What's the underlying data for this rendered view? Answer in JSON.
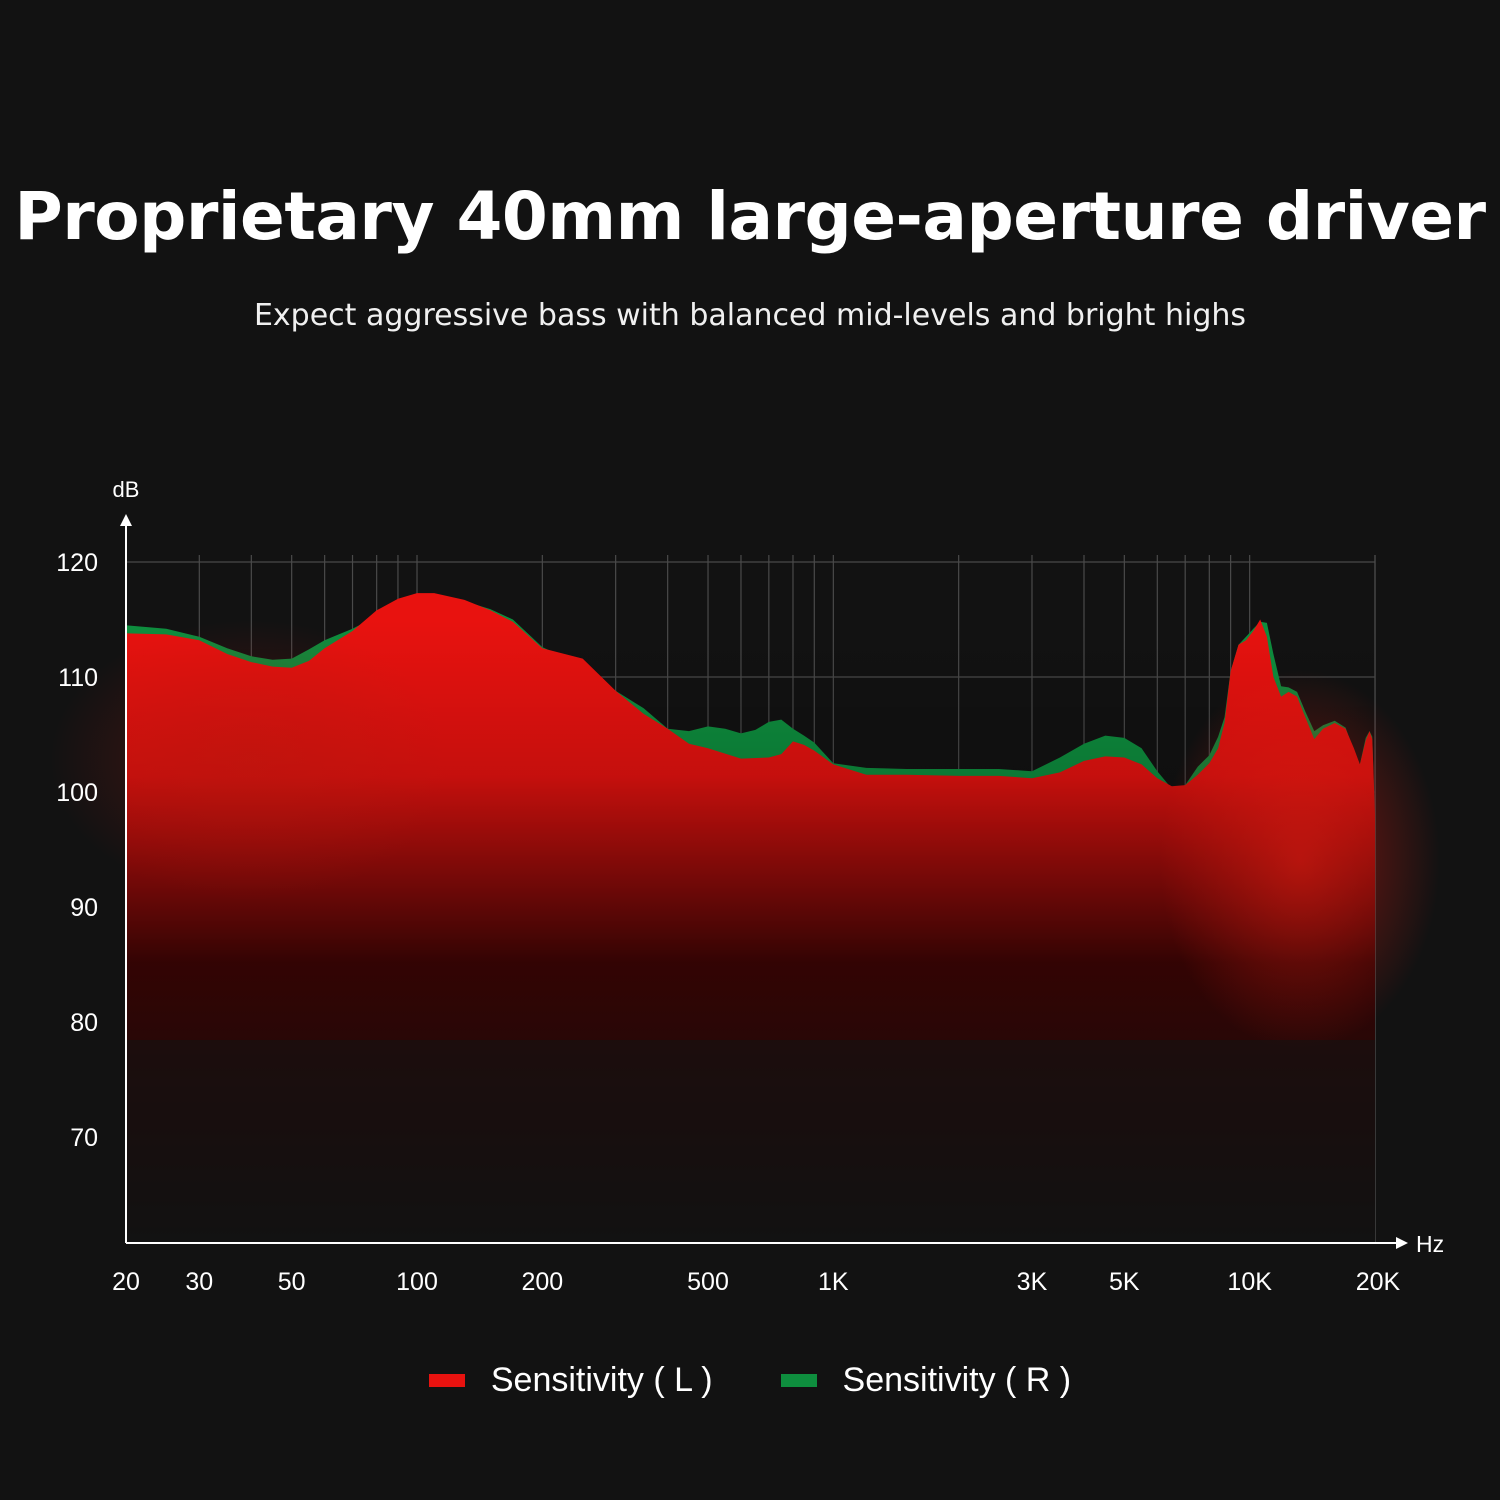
{
  "header": {
    "title": "Proprietary 40mm large-aperture driver",
    "subtitle": "Expect aggressive bass with balanced mid-levels and bright highs"
  },
  "chart_data": {
    "type": "area",
    "xscale": "log",
    "xlim": [
      20,
      20000
    ],
    "ylim": [
      61,
      121
    ],
    "ylabel": "dB",
    "xlabel": "Hz",
    "yticks": [
      {
        "value": 120,
        "label": "120"
      },
      {
        "value": 110,
        "label": "110"
      },
      {
        "value": 100,
        "label": "100"
      },
      {
        "value": 90,
        "label": "90"
      },
      {
        "value": 80,
        "label": "80"
      },
      {
        "value": 70,
        "label": "70"
      }
    ],
    "xticks": [
      {
        "value": 20,
        "label": "20"
      },
      {
        "value": 30,
        "label": "30"
      },
      {
        "value": 50,
        "label": "50"
      },
      {
        "value": 100,
        "label": "100"
      },
      {
        "value": 200,
        "label": "200"
      },
      {
        "value": 500,
        "label": "500"
      },
      {
        "value": 1000,
        "label": "1K"
      },
      {
        "value": 3000,
        "label": "3K"
      },
      {
        "value": 5000,
        "label": "5K"
      },
      {
        "value": 10000,
        "label": "10K"
      },
      {
        "value": 20000,
        "label": "20K"
      }
    ],
    "grid": true,
    "legend_position": "bottom-center",
    "series": [
      {
        "name": "Sensitivity ( L )",
        "color": "#e8120f",
        "points": [
          [
            20,
            113.8
          ],
          [
            25,
            113.7
          ],
          [
            30,
            113.2
          ],
          [
            35,
            112.0
          ],
          [
            40,
            111.3
          ],
          [
            45,
            110.9
          ],
          [
            50,
            110.8
          ],
          [
            55,
            111.4
          ],
          [
            60,
            112.5
          ],
          [
            70,
            114.0
          ],
          [
            80,
            115.8
          ],
          [
            90,
            116.8
          ],
          [
            100,
            117.3
          ],
          [
            110,
            117.3
          ],
          [
            130,
            116.7
          ],
          [
            150,
            115.8
          ],
          [
            170,
            114.8
          ],
          [
            200,
            112.5
          ],
          [
            250,
            111.6
          ],
          [
            300,
            108.8
          ],
          [
            350,
            106.8
          ],
          [
            400,
            105.5
          ],
          [
            450,
            104.2
          ],
          [
            500,
            103.8
          ],
          [
            600,
            102.9
          ],
          [
            700,
            103.0
          ],
          [
            750,
            103.3
          ],
          [
            800,
            104.4
          ],
          [
            850,
            104.1
          ],
          [
            900,
            103.6
          ],
          [
            1000,
            102.4
          ],
          [
            1200,
            101.5
          ],
          [
            1500,
            101.5
          ],
          [
            2000,
            101.4
          ],
          [
            2500,
            101.4
          ],
          [
            3000,
            101.2
          ],
          [
            3500,
            101.7
          ],
          [
            4000,
            102.7
          ],
          [
            4500,
            103.1
          ],
          [
            5000,
            103.0
          ],
          [
            5500,
            102.4
          ],
          [
            6000,
            101.2
          ],
          [
            6500,
            100.5
          ],
          [
            7000,
            100.6
          ],
          [
            7500,
            101.5
          ],
          [
            8000,
            102.5
          ],
          [
            8400,
            103.8
          ],
          [
            8700,
            106.0
          ],
          [
            9000,
            110.5
          ],
          [
            9400,
            112.8
          ],
          [
            9800,
            113.2
          ],
          [
            10200,
            114.0
          ],
          [
            10600,
            115.0
          ],
          [
            11000,
            113.5
          ],
          [
            11400,
            110.0
          ],
          [
            11900,
            108.3
          ],
          [
            12400,
            108.7
          ],
          [
            13000,
            108.3
          ],
          [
            13600,
            106.5
          ],
          [
            14300,
            104.6
          ],
          [
            15000,
            105.5
          ],
          [
            16000,
            106.0
          ],
          [
            17000,
            105.5
          ],
          [
            17800,
            103.8
          ],
          [
            18400,
            102.4
          ],
          [
            19000,
            104.5
          ],
          [
            19400,
            105.3
          ],
          [
            19700,
            104.6
          ],
          [
            20000,
            98.0
          ]
        ]
      },
      {
        "name": "Sensitivity ( R )",
        "color": "#0e8e3e",
        "points": [
          [
            20,
            114.5
          ],
          [
            25,
            114.2
          ],
          [
            30,
            113.5
          ],
          [
            35,
            112.5
          ],
          [
            40,
            111.8
          ],
          [
            45,
            111.5
          ],
          [
            50,
            111.6
          ],
          [
            55,
            112.4
          ],
          [
            60,
            113.2
          ],
          [
            70,
            114.2
          ],
          [
            80,
            115.3
          ],
          [
            90,
            116.2
          ],
          [
            100,
            116.8
          ],
          [
            110,
            116.9
          ],
          [
            130,
            116.6
          ],
          [
            150,
            115.9
          ],
          [
            170,
            115.0
          ],
          [
            200,
            112.6
          ],
          [
            250,
            111.0
          ],
          [
            300,
            108.8
          ],
          [
            350,
            107.3
          ],
          [
            400,
            105.5
          ],
          [
            450,
            105.3
          ],
          [
            500,
            105.7
          ],
          [
            550,
            105.5
          ],
          [
            600,
            105.1
          ],
          [
            650,
            105.4
          ],
          [
            700,
            106.1
          ],
          [
            750,
            106.3
          ],
          [
            800,
            105.5
          ],
          [
            850,
            104.9
          ],
          [
            900,
            104.3
          ],
          [
            1000,
            102.5
          ],
          [
            1200,
            102.1
          ],
          [
            1500,
            102.0
          ],
          [
            2000,
            102.0
          ],
          [
            2500,
            102.0
          ],
          [
            3000,
            101.8
          ],
          [
            3500,
            103.0
          ],
          [
            4000,
            104.2
          ],
          [
            4500,
            104.9
          ],
          [
            5000,
            104.7
          ],
          [
            5500,
            103.8
          ],
          [
            6000,
            101.8
          ],
          [
            6500,
            100.3
          ],
          [
            7000,
            100.6
          ],
          [
            7500,
            102.2
          ],
          [
            8000,
            103.2
          ],
          [
            8400,
            104.8
          ],
          [
            8700,
            106.5
          ],
          [
            9000,
            110.5
          ],
          [
            9400,
            112.8
          ],
          [
            9800,
            113.5
          ],
          [
            10200,
            114.2
          ],
          [
            10600,
            114.8
          ],
          [
            11000,
            114.7
          ],
          [
            11400,
            112.0
          ],
          [
            11900,
            109.2
          ],
          [
            12400,
            109.1
          ],
          [
            13000,
            108.7
          ],
          [
            13600,
            107.0
          ],
          [
            14300,
            105.3
          ],
          [
            15000,
            105.8
          ],
          [
            16000,
            106.2
          ],
          [
            17000,
            105.6
          ],
          [
            17800,
            103.6
          ],
          [
            18400,
            102.4
          ],
          [
            19000,
            104.7
          ],
          [
            19400,
            105.3
          ],
          [
            19700,
            104.8
          ],
          [
            20000,
            97.0
          ]
        ]
      }
    ]
  },
  "legend": {
    "items": [
      {
        "label": "Sensitivity ( L )",
        "color": "#e8120f"
      },
      {
        "label": "Sensitivity ( R )",
        "color": "#0e8e3e"
      }
    ]
  }
}
